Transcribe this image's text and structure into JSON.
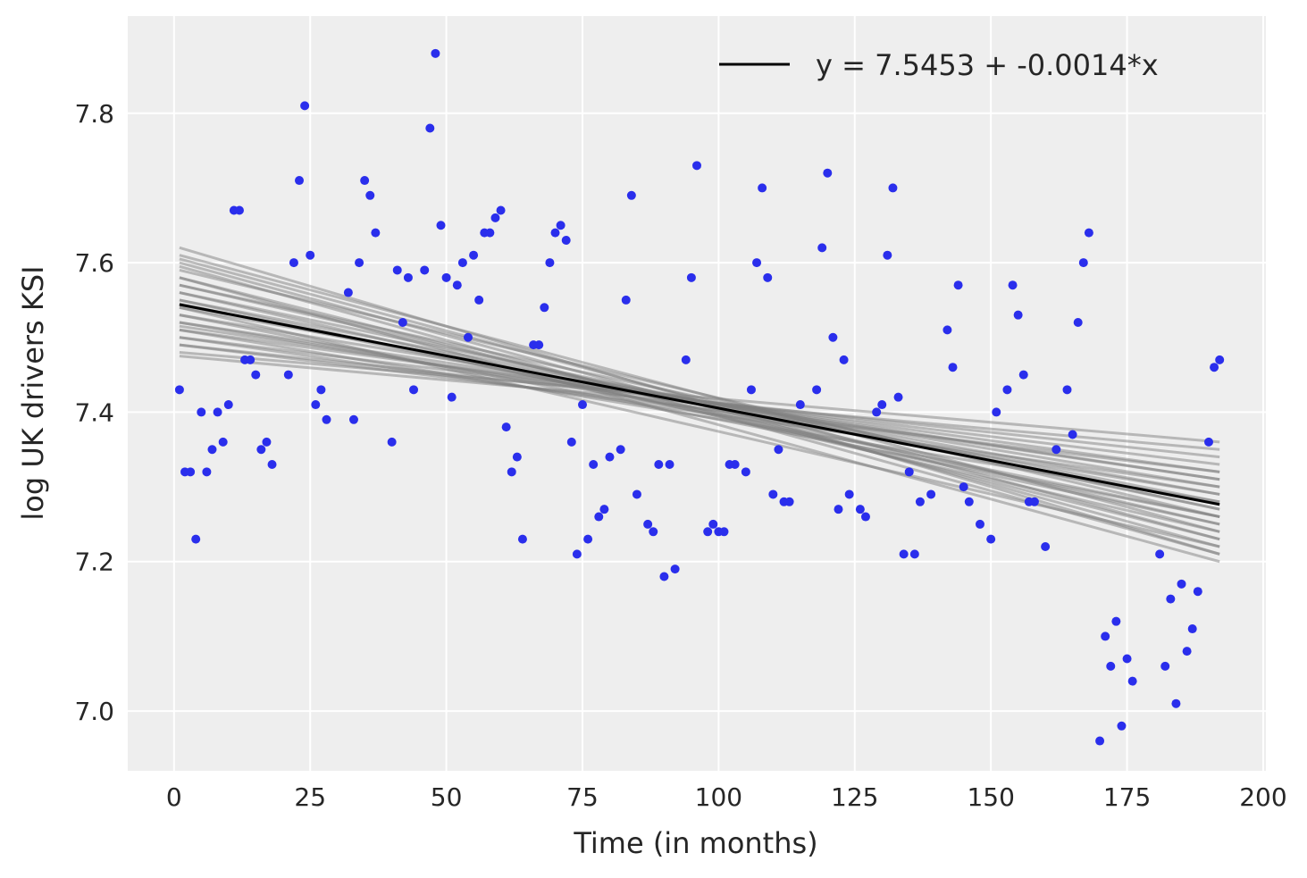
{
  "chart_data": {
    "type": "scatter",
    "title": "",
    "xlabel": "Time (in months)",
    "ylabel": "log UK drivers KSI",
    "xlim": [
      -8.5,
      200.5
    ],
    "ylim": [
      6.92,
      7.93
    ],
    "xticks": [
      0,
      25,
      50,
      75,
      100,
      125,
      150,
      175,
      200
    ],
    "yticks": [
      7.0,
      7.2,
      7.4,
      7.6,
      7.8
    ],
    "grid": true,
    "legend": {
      "position": "top-right",
      "entries": [
        {
          "label": "y = 7.5453 + -0.0014*x",
          "color": "#000000"
        }
      ]
    },
    "colors": {
      "points": "#2a2eec",
      "fit": "#000000",
      "posterior": "#808080",
      "background": "#eeeeee"
    },
    "fit_line": {
      "intercept": 7.5453,
      "slope": -0.0014,
      "x_range": [
        1,
        192
      ]
    },
    "posterior_lines": [
      [
        7.62,
        7.21
      ],
      [
        7.61,
        7.24
      ],
      [
        7.6,
        7.22
      ],
      [
        7.59,
        7.26
      ],
      [
        7.58,
        7.23
      ],
      [
        7.57,
        7.25
      ],
      [
        7.56,
        7.27
      ],
      [
        7.55,
        7.28
      ],
      [
        7.54,
        7.29
      ],
      [
        7.53,
        7.3
      ],
      [
        7.52,
        7.31
      ],
      [
        7.51,
        7.32
      ],
      [
        7.5,
        7.33
      ],
      [
        7.49,
        7.34
      ],
      [
        7.48,
        7.36
      ],
      [
        7.475,
        7.35
      ],
      [
        7.53,
        7.26
      ],
      [
        7.56,
        7.24
      ],
      [
        7.51,
        7.28
      ],
      [
        7.58,
        7.2
      ],
      [
        7.5,
        7.3
      ],
      [
        7.57,
        7.27
      ],
      [
        7.54,
        7.22
      ],
      [
        7.52,
        7.29
      ],
      [
        7.595,
        7.21
      ],
      [
        7.49,
        7.32
      ],
      [
        7.55,
        7.25
      ],
      [
        7.605,
        7.23
      ],
      [
        7.515,
        7.31
      ],
      [
        7.545,
        7.26
      ]
    ],
    "points": [
      [
        1,
        7.43
      ],
      [
        2,
        7.32
      ],
      [
        3,
        7.32
      ],
      [
        4,
        7.23
      ],
      [
        5,
        7.4
      ],
      [
        6,
        7.32
      ],
      [
        7,
        7.35
      ],
      [
        8,
        7.4
      ],
      [
        9,
        7.36
      ],
      [
        10,
        7.41
      ],
      [
        11,
        7.67
      ],
      [
        12,
        7.67
      ],
      [
        13,
        7.47
      ],
      [
        14,
        7.47
      ],
      [
        15,
        7.45
      ],
      [
        16,
        7.35
      ],
      [
        17,
        7.36
      ],
      [
        18,
        7.33
      ],
      [
        21,
        7.45
      ],
      [
        22,
        7.6
      ],
      [
        23,
        7.71
      ],
      [
        24,
        7.81
      ],
      [
        25,
        7.61
      ],
      [
        26,
        7.41
      ],
      [
        27,
        7.43
      ],
      [
        28,
        7.39
      ],
      [
        32,
        7.56
      ],
      [
        33,
        7.39
      ],
      [
        34,
        7.6
      ],
      [
        35,
        7.71
      ],
      [
        36,
        7.69
      ],
      [
        37,
        7.64
      ],
      [
        40,
        7.36
      ],
      [
        41,
        7.59
      ],
      [
        42,
        7.52
      ],
      [
        43,
        7.58
      ],
      [
        44,
        7.43
      ],
      [
        46,
        7.59
      ],
      [
        47,
        7.78
      ],
      [
        48,
        7.88
      ],
      [
        49,
        7.65
      ],
      [
        50,
        7.58
      ],
      [
        51,
        7.42
      ],
      [
        52,
        7.57
      ],
      [
        53,
        7.6
      ],
      [
        54,
        7.5
      ],
      [
        55,
        7.61
      ],
      [
        56,
        7.55
      ],
      [
        57,
        7.64
      ],
      [
        58,
        7.64
      ],
      [
        59,
        7.66
      ],
      [
        60,
        7.67
      ],
      [
        61,
        7.38
      ],
      [
        62,
        7.32
      ],
      [
        63,
        7.34
      ],
      [
        64,
        7.23
      ],
      [
        66,
        7.49
      ],
      [
        67,
        7.49
      ],
      [
        68,
        7.54
      ],
      [
        69,
        7.6
      ],
      [
        70,
        7.64
      ],
      [
        71,
        7.65
      ],
      [
        72,
        7.63
      ],
      [
        73,
        7.36
      ],
      [
        74,
        7.21
      ],
      [
        75,
        7.41
      ],
      [
        76,
        7.23
      ],
      [
        77,
        7.33
      ],
      [
        78,
        7.26
      ],
      [
        79,
        7.27
      ],
      [
        80,
        7.34
      ],
      [
        82,
        7.35
      ],
      [
        83,
        7.55
      ],
      [
        84,
        7.69
      ],
      [
        85,
        7.29
      ],
      [
        87,
        7.25
      ],
      [
        88,
        7.24
      ],
      [
        89,
        7.33
      ],
      [
        90,
        7.18
      ],
      [
        91,
        7.33
      ],
      [
        92,
        7.19
      ],
      [
        94,
        7.47
      ],
      [
        95,
        7.58
      ],
      [
        96,
        7.73
      ],
      [
        98,
        7.24
      ],
      [
        99,
        7.25
      ],
      [
        100,
        7.24
      ],
      [
        101,
        7.24
      ],
      [
        102,
        7.33
      ],
      [
        103,
        7.33
      ],
      [
        105,
        7.32
      ],
      [
        106,
        7.43
      ],
      [
        107,
        7.6
      ],
      [
        108,
        7.7
      ],
      [
        109,
        7.58
      ],
      [
        110,
        7.29
      ],
      [
        111,
        7.35
      ],
      [
        112,
        7.28
      ],
      [
        113,
        7.28
      ],
      [
        115,
        7.41
      ],
      [
        118,
        7.43
      ],
      [
        119,
        7.62
      ],
      [
        120,
        7.72
      ],
      [
        121,
        7.5
      ],
      [
        122,
        7.27
      ],
      [
        123,
        7.47
      ],
      [
        124,
        7.29
      ],
      [
        126,
        7.27
      ],
      [
        127,
        7.26
      ],
      [
        129,
        7.4
      ],
      [
        130,
        7.41
      ],
      [
        131,
        7.61
      ],
      [
        132,
        7.7
      ],
      [
        133,
        7.42
      ],
      [
        134,
        7.21
      ],
      [
        135,
        7.32
      ],
      [
        136,
        7.21
      ],
      [
        137,
        7.28
      ],
      [
        139,
        7.29
      ],
      [
        142,
        7.51
      ],
      [
        143,
        7.46
      ],
      [
        144,
        7.57
      ],
      [
        145,
        7.3
      ],
      [
        146,
        7.28
      ],
      [
        148,
        7.25
      ],
      [
        150,
        7.23
      ],
      [
        151,
        7.4
      ],
      [
        153,
        7.43
      ],
      [
        154,
        7.57
      ],
      [
        155,
        7.53
      ],
      [
        156,
        7.45
      ],
      [
        157,
        7.28
      ],
      [
        158,
        7.28
      ],
      [
        160,
        7.22
      ],
      [
        162,
        7.35
      ],
      [
        164,
        7.43
      ],
      [
        165,
        7.37
      ],
      [
        166,
        7.52
      ],
      [
        167,
        7.6
      ],
      [
        168,
        7.64
      ],
      [
        170,
        6.96
      ],
      [
        171,
        7.1
      ],
      [
        172,
        7.06
      ],
      [
        173,
        7.12
      ],
      [
        174,
        6.98
      ],
      [
        175,
        7.07
      ],
      [
        176,
        7.04
      ],
      [
        181,
        7.21
      ],
      [
        182,
        7.06
      ],
      [
        183,
        7.15
      ],
      [
        184,
        7.01
      ],
      [
        185,
        7.17
      ],
      [
        186,
        7.08
      ],
      [
        187,
        7.11
      ],
      [
        188,
        7.16
      ],
      [
        190,
        7.36
      ],
      [
        191,
        7.46
      ],
      [
        192,
        7.47
      ]
    ]
  }
}
